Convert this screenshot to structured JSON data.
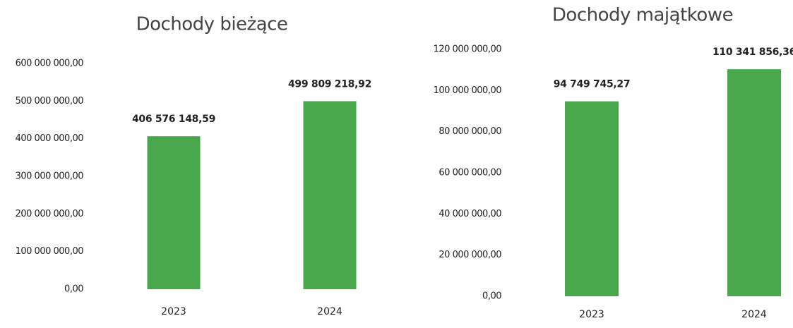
{
  "chart_data": [
    {
      "type": "bar",
      "title": "Dochody bieżące",
      "categories": [
        "2023",
        "2024"
      ],
      "values": [
        406576148.59,
        499809218.92
      ],
      "value_labels": [
        "406 576 148,59",
        "499 809 218,92"
      ],
      "color": "#4aa84c",
      "ylim": [
        0,
        600000000
      ],
      "yticks": [
        {
          "value": 0,
          "label": "0,00"
        },
        {
          "value": 100000000,
          "label": "100 000 000,00"
        },
        {
          "value": 200000000,
          "label": "200 000 000,00"
        },
        {
          "value": 300000000,
          "label": "300 000 000,00"
        },
        {
          "value": 400000000,
          "label": "400 000 000,00"
        },
        {
          "value": 500000000,
          "label": "500 000 000,00"
        },
        {
          "value": 600000000,
          "label": "600 000 000,00"
        }
      ],
      "grid": false
    },
    {
      "type": "bar",
      "title": "Dochody majątkowe",
      "categories": [
        "2023",
        "2024"
      ],
      "values": [
        94749745.27,
        110341856.36
      ],
      "value_labels": [
        "94 749 745,27",
        "110 341 856,36"
      ],
      "color": "#4aa84c",
      "ylim": [
        0,
        120000000
      ],
      "yticks": [
        {
          "value": 0,
          "label": "0,00"
        },
        {
          "value": 20000000,
          "label": "20 000 000,00"
        },
        {
          "value": 40000000,
          "label": "40 000 000,00"
        },
        {
          "value": 60000000,
          "label": "60 000 000,00"
        },
        {
          "value": 80000000,
          "label": "80 000 000,00"
        },
        {
          "value": 100000000,
          "label": "100 000 000,00"
        },
        {
          "value": 120000000,
          "label": "120 000 000,00"
        }
      ],
      "grid": false
    }
  ]
}
